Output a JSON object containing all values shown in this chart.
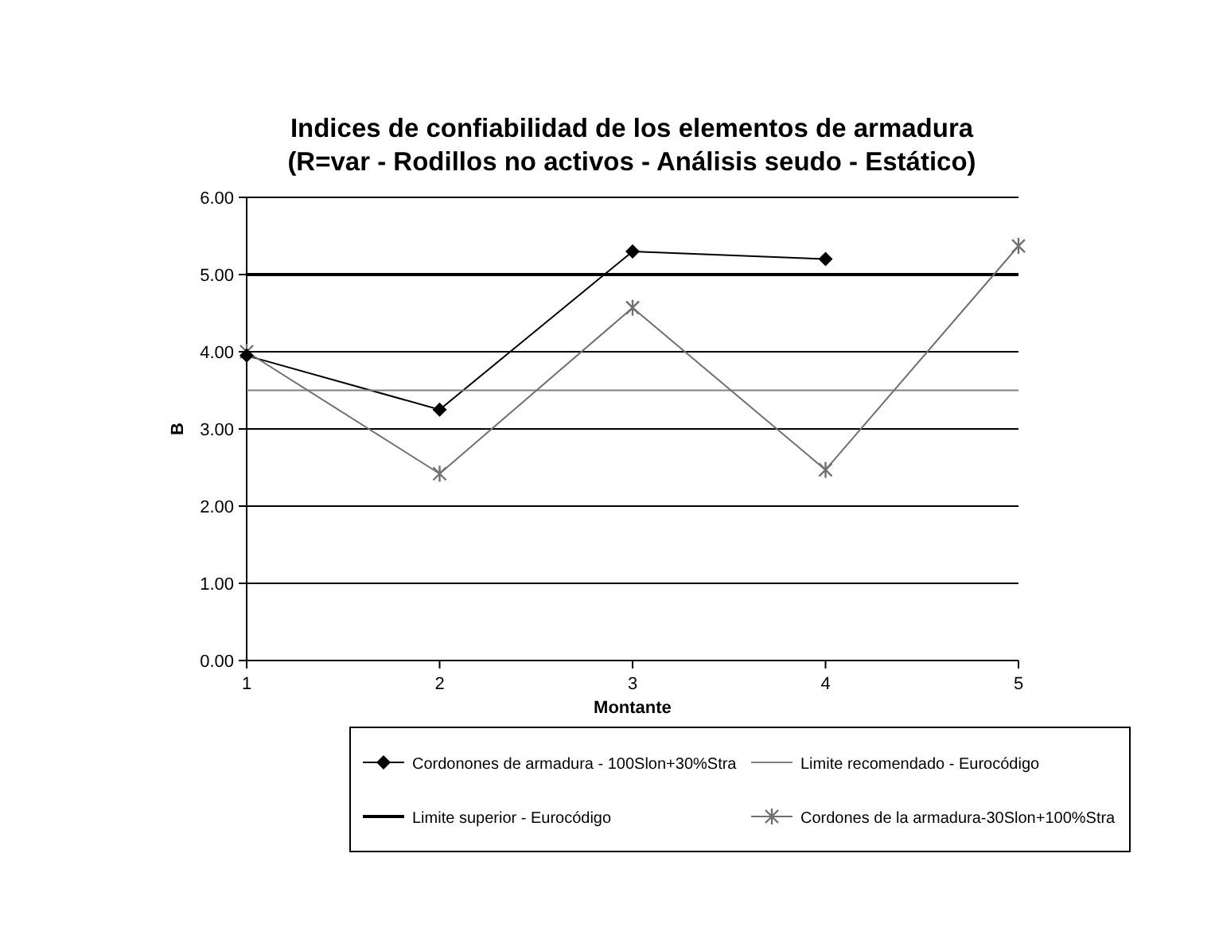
{
  "chart_data": {
    "type": "line",
    "title": "Indices de confiabilidad de los elementos de armadura\n(R=var - Rodillos no activos - Análisis seudo - Estático)",
    "xlabel": "Montante",
    "ylabel": "B",
    "categories": [
      "1",
      "2",
      "3",
      "4",
      "5"
    ],
    "series": [
      {
        "name": "Cordonones de armadura - 100Slon+30%Stra",
        "color": "#000000",
        "marker": "diamond",
        "values": [
          3.95,
          3.25,
          5.3,
          5.2,
          null
        ]
      },
      {
        "name": "Limite recomendado - Eurocódigo",
        "color": "#808080",
        "marker": "none",
        "values": [
          3.5,
          3.5,
          3.5,
          3.5,
          3.5
        ]
      },
      {
        "name": "Limite superior - Eurocódigo",
        "color": "#000000",
        "marker": "none",
        "values": [
          5,
          5,
          5,
          5,
          5
        ]
      },
      {
        "name": "Cordones de la armadura-30Slon+100%Stra",
        "color": "#707070",
        "marker": "cross",
        "values": [
          4.0,
          2.42,
          4.57,
          2.47,
          5.37
        ]
      }
    ],
    "ylim": [
      0,
      6
    ],
    "yticks": [
      {
        "value": 0,
        "label": "0.00"
      },
      {
        "value": 1,
        "label": "1.00"
      },
      {
        "value": 2,
        "label": "2.00"
      },
      {
        "value": 3,
        "label": "3.00"
      },
      {
        "value": 4,
        "label": "4.00"
      },
      {
        "value": 5,
        "label": "5.00"
      },
      {
        "value": 6,
        "label": "6.00"
      }
    ],
    "grid": "y",
    "legend": "bottom",
    "line_style": "solid"
  }
}
